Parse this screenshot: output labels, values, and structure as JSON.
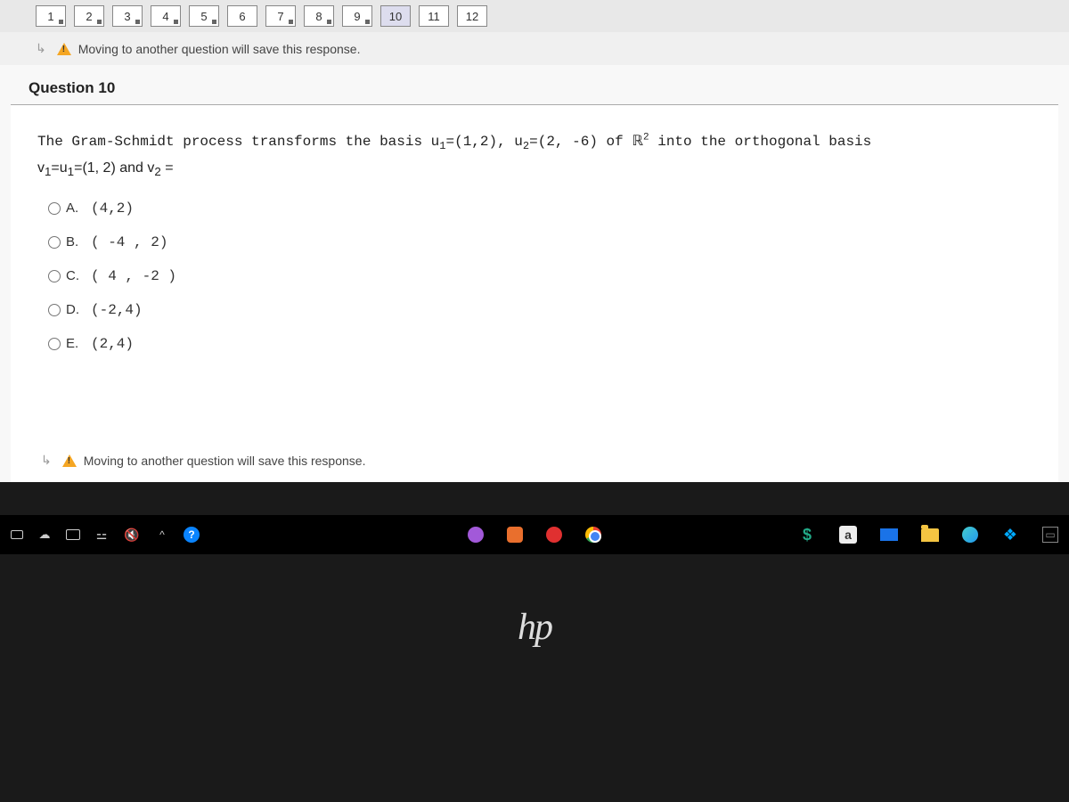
{
  "nav": {
    "items": [
      {
        "label": "1",
        "answered": true
      },
      {
        "label": "2",
        "answered": true
      },
      {
        "label": "3",
        "answered": true
      },
      {
        "label": "4",
        "answered": true
      },
      {
        "label": "5",
        "answered": true
      },
      {
        "label": "6",
        "answered": false
      },
      {
        "label": "7",
        "answered": true
      },
      {
        "label": "8",
        "answered": true
      },
      {
        "label": "9",
        "answered": true
      },
      {
        "label": "10",
        "answered": false,
        "current": true
      },
      {
        "label": "11",
        "answered": false
      },
      {
        "label": "12",
        "answered": false
      }
    ]
  },
  "warning_text": "Moving to another question will save this response.",
  "question": {
    "title": "Question 10",
    "prompt_part1": "The Gram-Schmidt process transforms the basis u",
    "u1_sub": "1",
    "u1_val": "=(1,2)",
    "comma": ", u",
    "u2_sub": "2",
    "u2_val": "=(2, -6) of ",
    "r_text": "ℝ",
    "r_sup": "2",
    "prompt_tail": " into the orthogonal basis",
    "line2_a": "v",
    "line2_sub1": "1",
    "line2_b": "=u",
    "line2_sub2": "1",
    "line2_c": "=(1, 2) and v",
    "line2_sub3": "2",
    "line2_d": " =",
    "options": [
      {
        "label": "A.",
        "value": "(4,2)"
      },
      {
        "label": "B.",
        "value": "( -4 , 2)"
      },
      {
        "label": "C.",
        "value": "( 4 , -2 )"
      },
      {
        "label": "D.",
        "value": "(-2,4)"
      },
      {
        "label": "E.",
        "value": "(2,4)"
      }
    ]
  },
  "taskbar": {
    "apps_center": [
      "utorrent",
      "powerpoint",
      "opera",
      "chrome"
    ],
    "apps_right": [
      "dollar",
      "a-app",
      "mail",
      "folder",
      "edge",
      "dropbox"
    ]
  },
  "hp_logo": "hp",
  "colors": {
    "page_bg": "#f8f8f8",
    "warn": "#f5a623",
    "taskbar": "#000000"
  }
}
